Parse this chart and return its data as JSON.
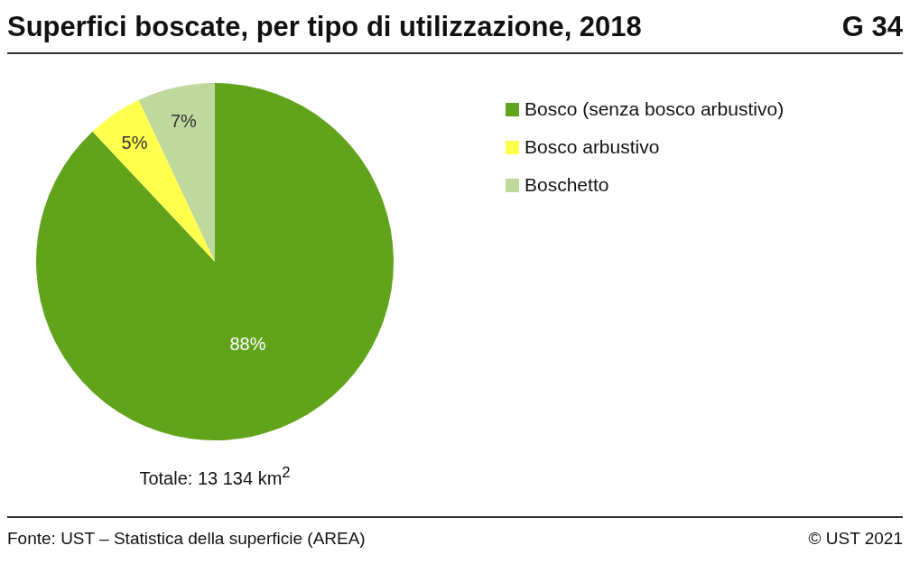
{
  "chart_data": {
    "type": "pie",
    "title": "Superfici boscate, per tipo di utilizzazione, 2018",
    "categories": [
      "Bosco (senza bosco arbustivo)",
      "Bosco arbustivo",
      "Boschetto"
    ],
    "values": [
      88,
      5,
      7
    ],
    "colors": [
      "#61a31a",
      "#ffff4d",
      "#bfd89b"
    ],
    "value_labels": [
      "88%",
      "5%",
      "7%"
    ],
    "legend": "top right",
    "annotations": [
      "G 34",
      "Totale: 13 134 km$^{2}$",
      "Fonte: UST – Statistica della superficie (AREA)",
      "© UST 2021"
    ]
  }
}
